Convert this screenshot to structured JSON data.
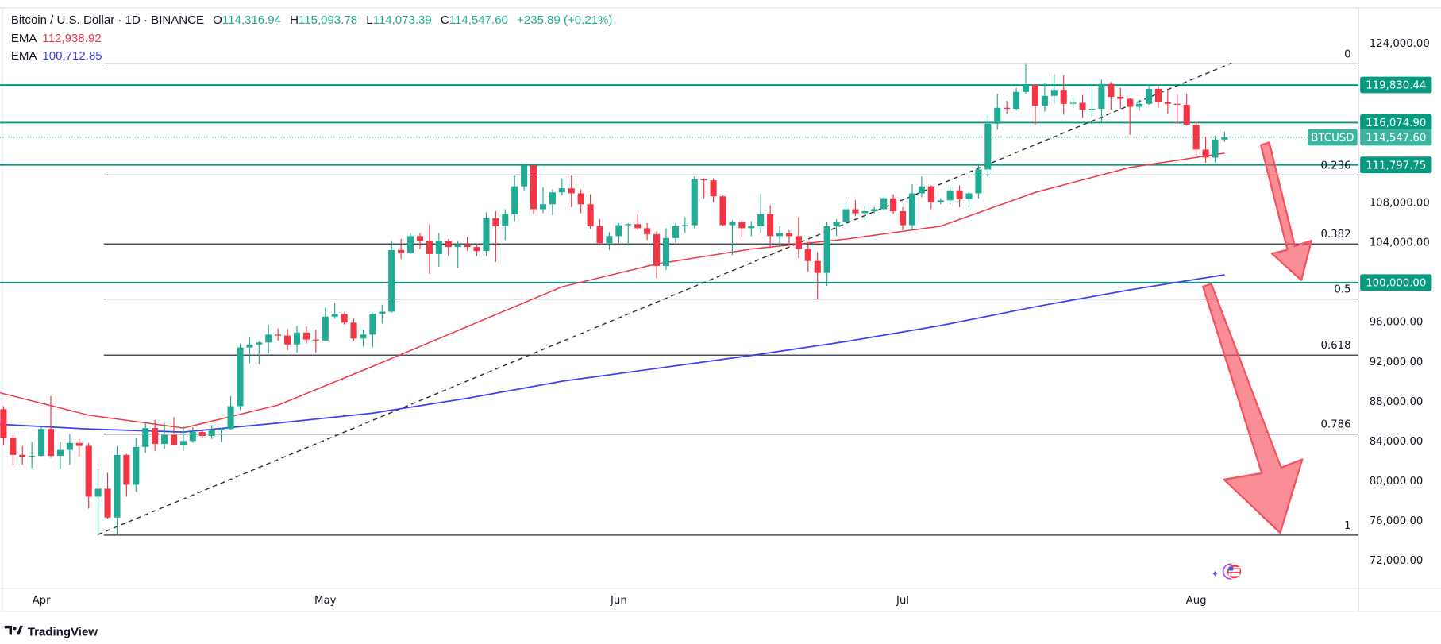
{
  "header": {
    "symbol": "Bitcoin / U.S. Dollar · 1D · BINANCE",
    "o_label": "O",
    "o": "114,316.94",
    "h_label": "H",
    "h": "115,093.78",
    "l_label": "L",
    "l": "114,073.39",
    "c_label": "C",
    "c": "114,547.60",
    "change": "+235.89 (+0.21%)",
    "ema1_label": "EMA",
    "ema1": "112,938.92",
    "ema2_label": "EMA",
    "ema2": "100,712.85"
  },
  "branding": "TradingView",
  "colors": {
    "up": "#22ab94",
    "down": "#f23645",
    "ema_fast": "#f23645",
    "ema_slow": "#3f3ff5",
    "level": "#089981",
    "arrow": "#f7525f"
  },
  "chart_data": {
    "type": "candlestick",
    "ylim": [
      70000,
      126000
    ],
    "y_tick_labels": [
      "124,000.00",
      "108,000.00",
      "104,000.00",
      "96,000.00",
      "92,000.00",
      "88,000.00",
      "84,000.00",
      "80,000.00",
      "76,000.00",
      "72,000.00"
    ],
    "y_ticks": [
      124000,
      108000,
      104000,
      96000,
      92000,
      88000,
      84000,
      80000,
      76000,
      72000
    ],
    "x_tick_labels": [
      "Apr",
      "May",
      "Jun",
      "Jul",
      "Aug"
    ],
    "grid": false,
    "candles_ohlc": [
      [
        86900,
        87800,
        86300,
        87200
      ],
      [
        87200,
        87500,
        83600,
        84300
      ],
      [
        84300,
        84600,
        81600,
        82600
      ],
      [
        82600,
        83500,
        81600,
        82400
      ],
      [
        82400,
        83900,
        81300,
        82500
      ],
      [
        82500,
        85500,
        82400,
        85200
      ],
      [
        85200,
        88500,
        82300,
        82500
      ],
      [
        82500,
        83900,
        81200,
        83100
      ],
      [
        83100,
        84700,
        81600,
        83800
      ],
      [
        83800,
        84200,
        82400,
        83500
      ],
      [
        83500,
        83800,
        77200,
        78400
      ],
      [
        78400,
        81200,
        74500,
        79200
      ],
      [
        79200,
        80800,
        76200,
        76300
      ],
      [
        76300,
        83500,
        74600,
        82600
      ],
      [
        82600,
        82700,
        78400,
        79600
      ],
      [
        79600,
        84300,
        78900,
        83400
      ],
      [
        83400,
        85900,
        82800,
        85300
      ],
      [
        85300,
        86100,
        83000,
        83700
      ],
      [
        83700,
        85800,
        83200,
        84600
      ],
      [
        84600,
        86400,
        83600,
        83600
      ],
      [
        83600,
        85500,
        83000,
        84000
      ],
      [
        84000,
        85400,
        83800,
        84900
      ],
      [
        84900,
        85100,
        84300,
        84500
      ],
      [
        84500,
        85600,
        84200,
        85100
      ],
      [
        85100,
        85300,
        83900,
        85200
      ],
      [
        85200,
        88500,
        85100,
        87500
      ],
      [
        87500,
        93800,
        87100,
        93400
      ],
      [
        93400,
        94500,
        91800,
        93700
      ],
      [
        93700,
        94000,
        91700,
        93900
      ],
      [
        93900,
        95700,
        92800,
        94700
      ],
      [
        94700,
        95300,
        94100,
        94600
      ],
      [
        94600,
        95300,
        93100,
        93700
      ],
      [
        93700,
        95600,
        92900,
        94900
      ],
      [
        94900,
        95500,
        93800,
        94200
      ],
      [
        94200,
        95200,
        92900,
        94100
      ],
      [
        94100,
        97400,
        94100,
        96500
      ],
      [
        96500,
        97900,
        96300,
        96800
      ],
      [
        96800,
        96900,
        95700,
        95900
      ],
      [
        95900,
        96300,
        94100,
        94300
      ],
      [
        94300,
        95200,
        93500,
        94700
      ],
      [
        94700,
        96900,
        93400,
        96800
      ],
      [
        96800,
        97700,
        95800,
        97000
      ],
      [
        97000,
        104100,
        96900,
        103200
      ],
      [
        103200,
        104300,
        102300,
        102900
      ],
      [
        102900,
        104900,
        102800,
        104600
      ],
      [
        104600,
        104900,
        103300,
        104100
      ],
      [
        104100,
        105800,
        100800,
        102800
      ],
      [
        102800,
        104900,
        101500,
        104100
      ],
      [
        104100,
        104300,
        102600,
        103500
      ],
      [
        103500,
        104100,
        101400,
        103700
      ],
      [
        103700,
        104500,
        103100,
        103500
      ],
      [
        103500,
        103700,
        102600,
        103100
      ],
      [
        103100,
        107000,
        102600,
        106400
      ],
      [
        106400,
        107100,
        102000,
        105600
      ],
      [
        105600,
        107300,
        104200,
        106800
      ],
      [
        106800,
        110800,
        106100,
        109600
      ],
      [
        109600,
        111900,
        109200,
        111700
      ],
      [
        111700,
        111800,
        106800,
        107300
      ],
      [
        107300,
        109500,
        106900,
        107800
      ],
      [
        107800,
        109300,
        106700,
        109000
      ],
      [
        109000,
        110400,
        108700,
        109400
      ],
      [
        109400,
        110700,
        107500,
        108900
      ],
      [
        108900,
        109300,
        106900,
        107800
      ],
      [
        107800,
        108800,
        105300,
        105600
      ],
      [
        105600,
        106300,
        103700,
        103900
      ],
      [
        103900,
        105000,
        103200,
        104600
      ],
      [
        104600,
        105900,
        103900,
        105700
      ],
      [
        105700,
        105900,
        103700,
        105800
      ],
      [
        105800,
        106800,
        105200,
        105400
      ],
      [
        105400,
        105900,
        104200,
        104800
      ],
      [
        104800,
        105100,
        100400,
        101600
      ],
      [
        101600,
        105400,
        101200,
        104400
      ],
      [
        104400,
        105900,
        103900,
        105600
      ],
      [
        105600,
        106500,
        104900,
        105700
      ],
      [
        105700,
        110600,
        105400,
        110300
      ],
      [
        110300,
        110400,
        108400,
        110200
      ],
      [
        110200,
        110400,
        108000,
        108600
      ],
      [
        108600,
        108700,
        105600,
        105700
      ],
      [
        105700,
        106200,
        102700,
        106000
      ],
      [
        106000,
        106200,
        104500,
        105400
      ],
      [
        105400,
        106100,
        104600,
        105600
      ],
      [
        105600,
        108900,
        104900,
        106800
      ],
      [
        106800,
        107700,
        103400,
        104600
      ],
      [
        104600,
        105600,
        103500,
        104900
      ],
      [
        104900,
        105200,
        103900,
        104600
      ],
      [
        104600,
        106500,
        102400,
        103300
      ],
      [
        103300,
        104000,
        101000,
        102100
      ],
      [
        102100,
        103000,
        98200,
        100900
      ],
      [
        100900,
        106000,
        99600,
        105600
      ],
      [
        105600,
        106300,
        104600,
        106000
      ],
      [
        106000,
        108100,
        105900,
        107300
      ],
      [
        107300,
        108200,
        106600,
        106900
      ],
      [
        106900,
        107600,
        106200,
        107100
      ],
      [
        107100,
        107500,
        106900,
        107300
      ],
      [
        107300,
        108500,
        107200,
        108400
      ],
      [
        108400,
        108800,
        106800,
        107100
      ],
      [
        107100,
        107500,
        105200,
        105700
      ],
      [
        105700,
        109800,
        105200,
        108900
      ],
      [
        108900,
        110600,
        108500,
        109600
      ],
      [
        109600,
        109700,
        107300,
        108000
      ],
      [
        108000,
        108400,
        107800,
        108200
      ],
      [
        108200,
        109700,
        107800,
        109200
      ],
      [
        109200,
        109700,
        107500,
        108300
      ],
      [
        108300,
        109000,
        107500,
        108900
      ],
      [
        108900,
        111900,
        108400,
        111300
      ],
      [
        111300,
        116800,
        110600,
        115900
      ],
      [
        115900,
        118900,
        115300,
        117500
      ],
      [
        117500,
        118200,
        116900,
        117400
      ],
      [
        117400,
        119500,
        117300,
        119100
      ],
      [
        119100,
        122000,
        118900,
        119800
      ],
      [
        119800,
        119900,
        115800,
        117700
      ],
      [
        117700,
        120000,
        117100,
        118700
      ],
      [
        118700,
        120900,
        117900,
        119300
      ],
      [
        119300,
        120800,
        116800,
        117900
      ],
      [
        117900,
        118500,
        117500,
        118000
      ],
      [
        118000,
        118800,
        116500,
        117300
      ],
      [
        117300,
        119700,
        116600,
        117400
      ],
      [
        117400,
        120300,
        116100,
        119900
      ],
      [
        119900,
        120100,
        117300,
        118600
      ],
      [
        118600,
        119500,
        117400,
        118400
      ],
      [
        118400,
        118500,
        114800,
        117600
      ],
      [
        117600,
        118300,
        117200,
        117900
      ],
      [
        117900,
        119900,
        117800,
        119400
      ],
      [
        119400,
        119900,
        117500,
        118100
      ],
      [
        118100,
        119200,
        116900,
        117900
      ],
      [
        117900,
        118800,
        115900,
        117800
      ],
      [
        117800,
        118900,
        115700,
        115800
      ],
      [
        115800,
        116100,
        112700,
        113300
      ],
      [
        113300,
        114600,
        112000,
        112500
      ],
      [
        112500,
        114700,
        112000,
        114300
      ],
      [
        114300,
        115093.78,
        114073.39,
        114547.6
      ]
    ],
    "ema_fast_every_10_candles": [
      89000,
      86600,
      85300,
      87600,
      91500,
      95500,
      99500,
      101800,
      103300,
      104300,
      105600,
      109000,
      111500,
      112938.92
    ],
    "ema_slow_every_10_candles": [
      85700,
      85200,
      84900,
      85800,
      86800,
      88300,
      90000,
      91300,
      92600,
      94000,
      95600,
      97500,
      99200,
      100712.85
    ],
    "fibonacci": {
      "high": 122000,
      "low": 74600,
      "levels": [
        {
          "ratio": 0,
          "label": "0"
        },
        {
          "ratio": 0.236,
          "label": "0.236"
        },
        {
          "ratio": 0.382,
          "label": "0.382"
        },
        {
          "ratio": 0.5,
          "label": "0.5"
        },
        {
          "ratio": 0.618,
          "label": "0.618"
        },
        {
          "ratio": 0.786,
          "label": "0.786"
        },
        {
          "ratio": 1,
          "label": "1"
        }
      ]
    },
    "horizontal_levels": [
      {
        "value": 119830.44,
        "label": "119,830.44"
      },
      {
        "value": 116074.9,
        "label": "116,074.90"
      },
      {
        "value": 111797.75,
        "label": "111,797.75"
      },
      {
        "value": 100000.0,
        "label": "100,000.00"
      }
    ],
    "last_price": {
      "value": 114547.6,
      "label": "114,547.60",
      "symbol": "BTCUSD"
    },
    "trendline": {
      "from": 74600,
      "to": 122000
    }
  }
}
